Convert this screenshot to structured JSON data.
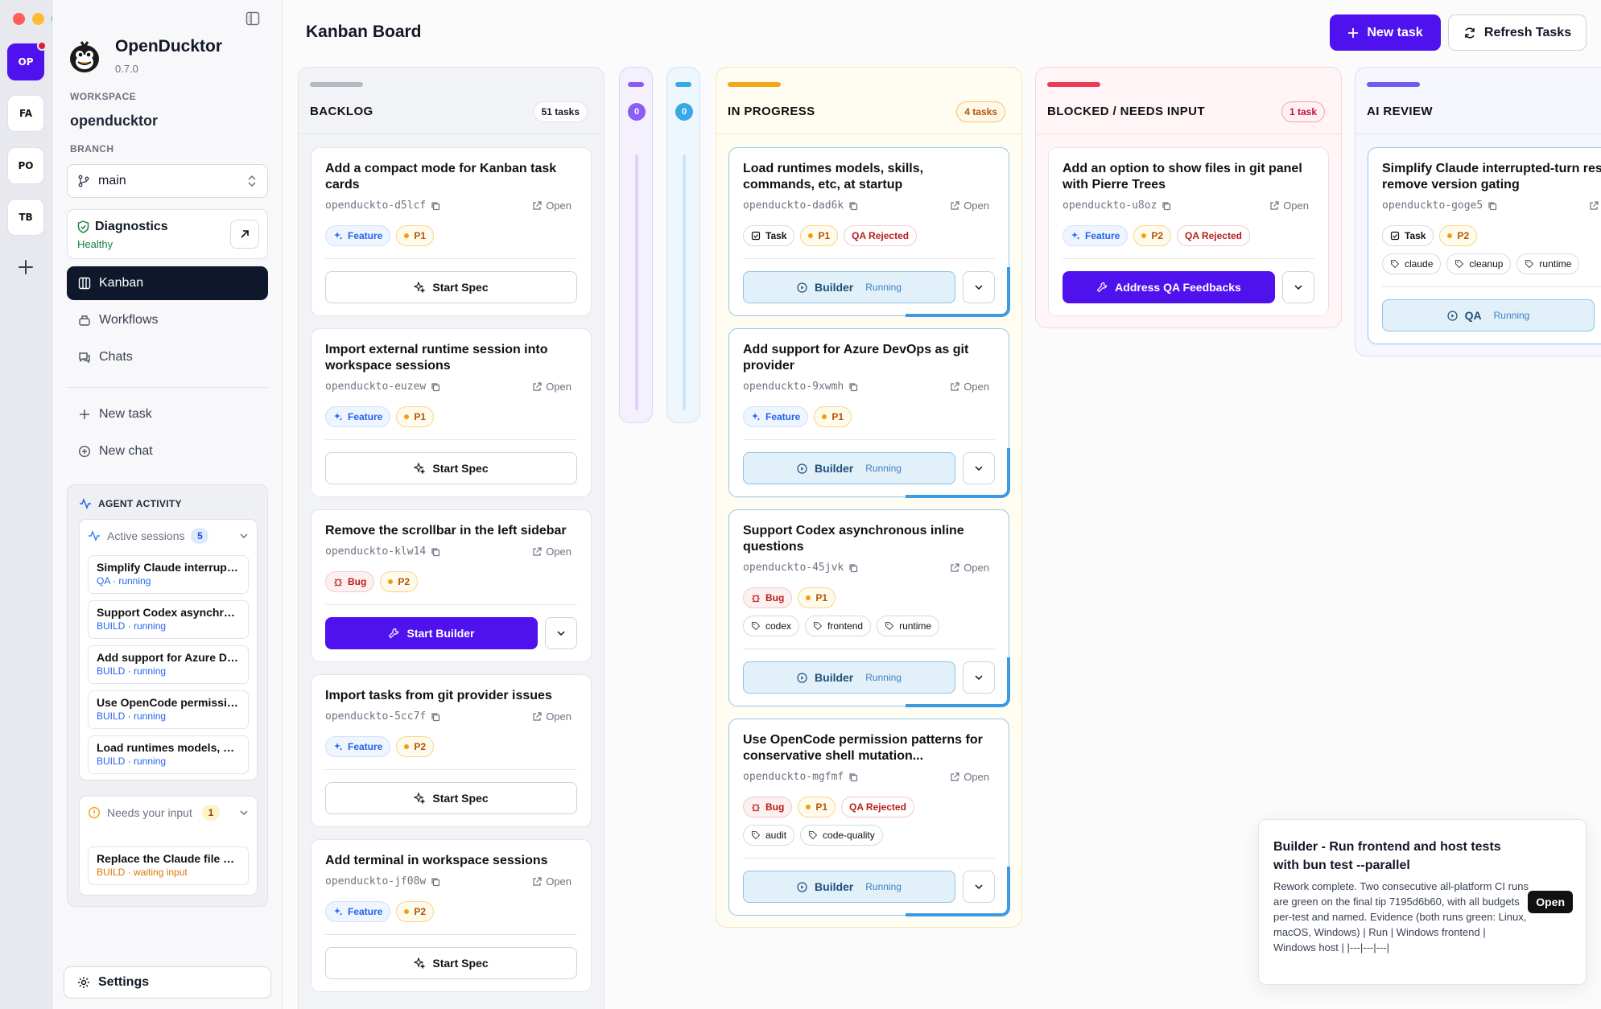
{
  "rail": {
    "workspaces": [
      "OP",
      "FA",
      "PO",
      "TB"
    ]
  },
  "sidebar": {
    "app_name": "OpenDucktor",
    "version": "0.7.0",
    "workspace_label": "WORKSPACE",
    "workspace_name": "openducktor",
    "branch_label": "BRANCH",
    "branch": "main",
    "diagnostics": {
      "title": "Diagnostics",
      "status": "Healthy"
    },
    "nav": [
      "Kanban",
      "Workflows",
      "Chats"
    ],
    "actions": [
      "New task",
      "New chat"
    ],
    "agent_activity": {
      "title": "AGENT ACTIVITY",
      "active": {
        "label": "Active sessions",
        "count": "5",
        "sessions": [
          {
            "title": "Simplify Claude interrupted-turn resume and remove version gating",
            "status": "QA · running"
          },
          {
            "title": "Support Codex asynchronous inline questions",
            "status": "BUILD · running"
          },
          {
            "title": "Add support for Azure DevOps as git provider",
            "status": "BUILD · running"
          },
          {
            "title": "Use OpenCode permission patterns for conservative shell mutation",
            "status": "BUILD · running"
          },
          {
            "title": "Load runtimes models, skills, commands, etc, at startup",
            "status": "BUILD · running"
          }
        ]
      },
      "needs": {
        "label": "Needs your input",
        "count": "1",
        "sessions": [
          {
            "title": "Replace the Claude file picker",
            "status": "BUILD · waiting input"
          }
        ]
      }
    },
    "settings": "Settings"
  },
  "header": {
    "title": "Kanban Board",
    "new_task": "New task",
    "refresh": "Refresh Tasks"
  },
  "columns": {
    "backlog": {
      "title": "BACKLOG",
      "count": "51 tasks"
    },
    "narrow1": {
      "count": "0"
    },
    "narrow2": {
      "count": "0"
    },
    "progress": {
      "title": "IN PROGRESS",
      "count": "4 tasks"
    },
    "blocked": {
      "title": "BLOCKED / NEEDS INPUT",
      "count": "1 task"
    },
    "review": {
      "title": "AI REVIEW"
    }
  },
  "open_label": "Open",
  "backlog_cards": [
    {
      "title": "Add a compact mode for Kanban task cards",
      "id": "openduckto-d5lcf",
      "type": "Feature",
      "priority": "P1",
      "action": "Start Spec"
    },
    {
      "title": "Import external runtime session into workspace sessions",
      "id": "openduckto-euzew",
      "type": "Feature",
      "priority": "P1",
      "action": "Start Spec"
    },
    {
      "title": "Remove the scrollbar in the left sidebar",
      "id": "openduckto-klw14",
      "type": "Bug",
      "priority": "P2",
      "action": "Start Builder"
    },
    {
      "title": "Import tasks from git provider issues",
      "id": "openduckto-5cc7f",
      "type": "Feature",
      "priority": "P2",
      "action": "Start Spec"
    },
    {
      "title": "Add terminal in workspace sessions",
      "id": "openduckto-jf08w",
      "type": "Feature",
      "priority": "P2",
      "action": "Start Spec"
    }
  ],
  "progress_cards": [
    {
      "title": "Load runtimes models, skills, commands, etc, at startup",
      "id": "openduckto-dad6k",
      "type": "Task",
      "priority": "P1",
      "qa": "QA Rejected",
      "action": "Builder",
      "state": "Running"
    },
    {
      "title": "Add support for Azure DevOps as git provider",
      "id": "openduckto-9xwmh",
      "type": "Feature",
      "priority": "P1",
      "action": "Builder",
      "state": "Running"
    },
    {
      "title": "Support Codex asynchronous inline questions",
      "id": "openduckto-45jvk",
      "type": "Bug",
      "priority": "P1",
      "labels": [
        "codex",
        "frontend",
        "runtime"
      ],
      "action": "Builder",
      "state": "Running"
    },
    {
      "title": "Use OpenCode permission patterns for conservative shell mutation...",
      "id": "openduckto-mgfmf",
      "type": "Bug",
      "priority": "P1",
      "qa": "QA Rejected",
      "labels": [
        "audit",
        "code-quality"
      ],
      "action": "Builder",
      "state": "Running"
    }
  ],
  "blocked_cards": [
    {
      "title": "Add an option to show files in git panel with Pierre Trees",
      "id": "openduckto-u8oz",
      "type": "Feature",
      "priority": "P2",
      "qa": "QA Rejected",
      "action": "Address QA Feedbacks"
    }
  ],
  "review_cards": [
    {
      "title": "Simplify Claude interrupted-turn resume and remove version gating",
      "id": "openduckto-goge5",
      "type": "Task",
      "priority": "P2",
      "labels": [
        "claude",
        "cleanup",
        "runtime"
      ],
      "action": "QA",
      "state": "Running"
    }
  ],
  "toast": {
    "title": "Builder - Run frontend and host tests with bun test --parallel",
    "body": "Rework complete. Two consecutive all-platform CI runs are green on the final tip 7195d6b60, with all budgets per-test and named. Evidence (both runs green: Linux, macOS, Windows) | Run | Windows frontend | Windows host | |---|---|---|",
    "button": "Open"
  },
  "colors": {
    "accent": "#4f12ee",
    "backlog_bar": "#b6b8c1",
    "narrow1": "#8b5cf6",
    "narrow2": "#38a9e4",
    "progress_bar": "#f5a71b",
    "blocked_bar": "#ec3b55",
    "review_bar": "#6d5cf0"
  }
}
